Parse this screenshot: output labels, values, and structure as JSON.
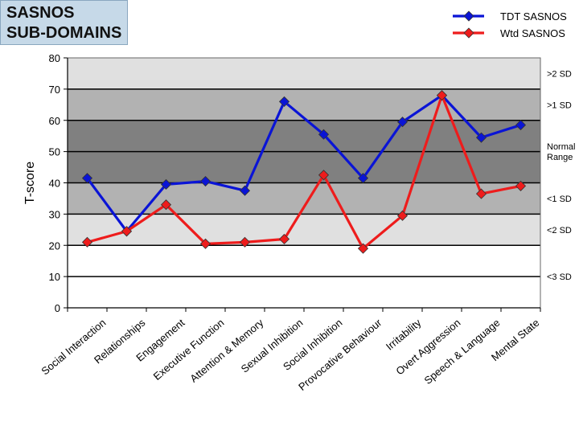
{
  "title": {
    "line1": "SASNOS",
    "line2": "SUB-DOMAINS"
  },
  "chart_data": {
    "type": "line",
    "title": "SASNOS SUB-DOMAINS",
    "xlabel": "",
    "ylabel": "T-score",
    "ylim": [
      0,
      80
    ],
    "yticks": [
      0,
      10,
      20,
      30,
      40,
      50,
      60,
      70,
      80
    ],
    "categories": [
      "Social Interaction",
      "Relationships",
      "Engagement",
      "Executive Function",
      "Attention & Memory",
      "Sexual Inhibition",
      "Social Inhibition",
      "Provocative Behaviour",
      "Irritability",
      "Overt Aggression",
      "Speech & Language",
      "Mental State"
    ],
    "series": [
      {
        "name": "TDT SASNOS",
        "color": "#0a14d6",
        "values": [
          41.5,
          24.5,
          39.5,
          40.5,
          37.5,
          66,
          55.5,
          41.5,
          59.5,
          68,
          54.5,
          58.5
        ]
      },
      {
        "name": "Wtd SASNOS",
        "color": "#ee1c1c",
        "values": [
          21,
          24.5,
          33,
          20.5,
          21,
          22,
          42.5,
          19,
          29.5,
          68,
          36.5,
          39
        ]
      }
    ],
    "bands": [
      {
        "from": 0,
        "to": 20,
        "color": "#ffffff"
      },
      {
        "from": 20,
        "to": 30,
        "color": "#e0e0e0"
      },
      {
        "from": 30,
        "to": 40,
        "color": "#b2b2b2"
      },
      {
        "from": 40,
        "to": 60,
        "color": "#808080"
      },
      {
        "from": 60,
        "to": 70,
        "color": "#b2b2b2"
      },
      {
        "from": 70,
        "to": 80,
        "color": "#e0e0e0"
      }
    ],
    "band_labels": [
      {
        "text": ">2 SD",
        "value": 75
      },
      {
        "text": ">1 SD",
        "value": 65
      },
      {
        "text": "Normal\nRange",
        "value": 50
      },
      {
        "text": "<1 SD",
        "value": 35
      },
      {
        "text": "<2 SD",
        "value": 25
      },
      {
        "text": "<3 SD",
        "value": 10
      }
    ],
    "grid": true,
    "legend": "top-right"
  }
}
